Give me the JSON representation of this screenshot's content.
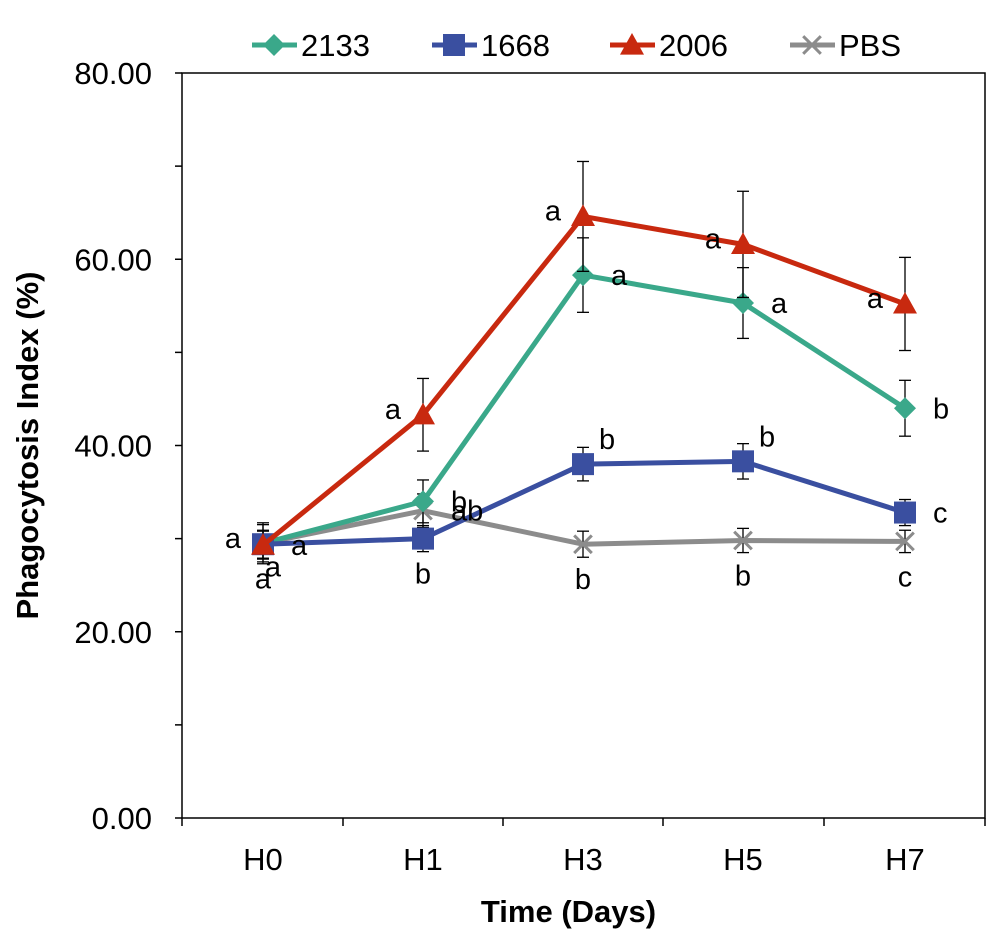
{
  "chart_data": {
    "type": "line",
    "title": "",
    "xlabel": "Time (Days)",
    "ylabel": "Phagocytosis Index (%)",
    "categories": [
      "H0",
      "H1",
      "H3",
      "H5",
      "H7"
    ],
    "ylim": [
      0,
      80
    ],
    "yticks": [
      0,
      20,
      40,
      60,
      80
    ],
    "ytick_labels": [
      "0.00",
      "20.00",
      "40.00",
      "60.00",
      "80.00"
    ],
    "grid": false,
    "legend_position": "top",
    "series": [
      {
        "name": "2133",
        "color": "#3aa88a",
        "marker": "diamond",
        "values": [
          29.5,
          34.0,
          58.3,
          55.3,
          44.0
        ],
        "errors": [
          2.0,
          2.3,
          4.0,
          3.8,
          3.0
        ],
        "sig": [
          {
            "text": "a",
            "side": "below-right"
          },
          {
            "text": "b",
            "side": "right"
          },
          {
            "text": "a",
            "side": "right"
          },
          {
            "text": "a",
            "side": "right"
          },
          {
            "text": "b",
            "side": "right"
          }
        ]
      },
      {
        "name": "1668",
        "color": "#3a4fa0",
        "marker": "square",
        "values": [
          29.4,
          30.0,
          38.0,
          38.3,
          32.8
        ],
        "errors": [
          1.5,
          1.4,
          1.8,
          1.9,
          1.4
        ],
        "sig": [
          {
            "text": "a",
            "side": "left"
          },
          {
            "text": "b",
            "side": "below"
          },
          {
            "text": "b",
            "side": "above-right"
          },
          {
            "text": "b",
            "side": "above-right"
          },
          {
            "text": "c",
            "side": "right"
          }
        ]
      },
      {
        "name": "2006",
        "color": "#c8290f",
        "marker": "triangle",
        "values": [
          29.3,
          43.3,
          64.6,
          61.6,
          55.2
        ],
        "errors": [
          1.5,
          3.9,
          5.9,
          5.7,
          5.0
        ],
        "sig": [
          {
            "text": "a",
            "side": "right"
          },
          {
            "text": "a",
            "side": "left"
          },
          {
            "text": "a",
            "side": "left"
          },
          {
            "text": "a",
            "side": "left"
          },
          {
            "text": "a",
            "side": "left"
          }
        ]
      },
      {
        "name": "PBS",
        "color": "#8c8c8c",
        "marker": "x",
        "values": [
          29.5,
          33.0,
          29.4,
          29.8,
          29.7
        ],
        "errors": [
          2.2,
          1.8,
          1.4,
          1.3,
          1.2
        ],
        "sig": [
          {
            "text": "a",
            "side": "below"
          },
          {
            "text": "ab",
            "side": "right"
          },
          {
            "text": "b",
            "side": "below"
          },
          {
            "text": "b",
            "side": "below"
          },
          {
            "text": "c",
            "side": "below"
          }
        ]
      }
    ]
  }
}
